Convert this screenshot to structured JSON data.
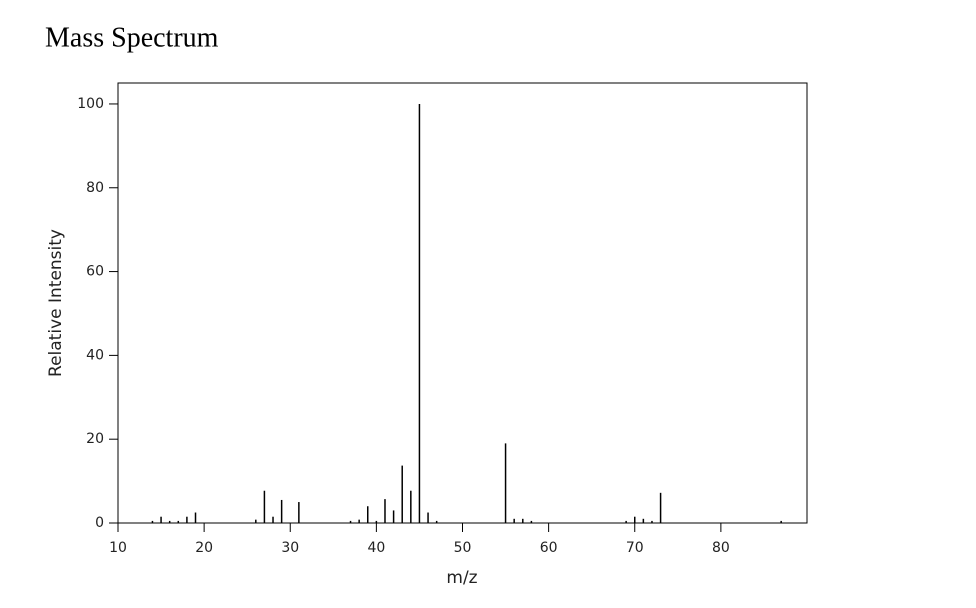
{
  "chart_data": {
    "type": "stem",
    "title": "Mass Spectrum",
    "x_label": "m/z",
    "y_label": "Relative Intensity",
    "x": [
      14,
      15,
      16,
      17,
      18,
      19,
      26,
      27,
      28,
      29,
      31,
      37,
      38,
      39,
      40,
      41,
      42,
      43,
      44,
      45,
      46,
      47,
      55,
      56,
      57,
      58,
      69,
      70,
      71,
      72,
      73,
      87
    ],
    "values": [
      0.5,
      1.5,
      0.5,
      0.5,
      1.5,
      2.5,
      0.8,
      7.7,
      1.5,
      5.5,
      5,
      0.5,
      0.8,
      4,
      0.5,
      5.7,
      3,
      13.7,
      7.7,
      100,
      2.5,
      0.5,
      19,
      1,
      1,
      0.5,
      0.5,
      1.5,
      1,
      0.5,
      7.2,
      0.5
    ],
    "color": "#000000",
    "xlim": [
      10,
      90
    ],
    "ylim": [
      0,
      105
    ],
    "xticks": [
      10,
      20,
      30,
      40,
      50,
      60,
      70,
      80
    ],
    "yticks": [
      0,
      20,
      40,
      60,
      80,
      100
    ]
  }
}
